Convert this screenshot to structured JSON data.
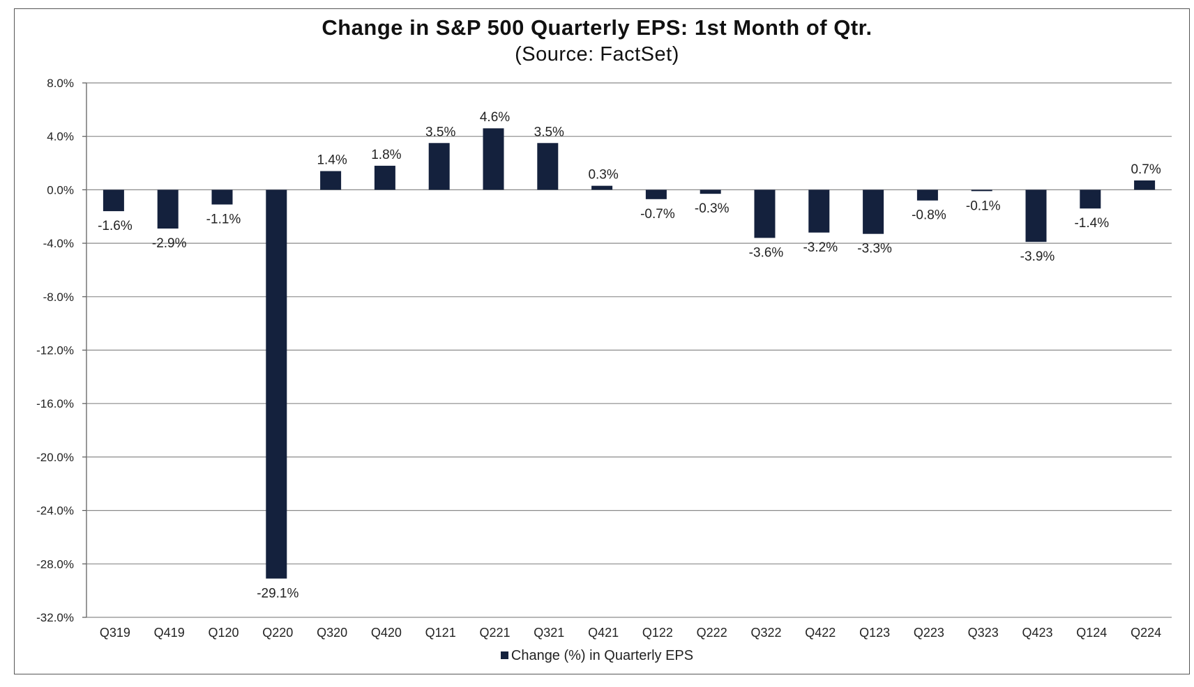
{
  "chart_data": {
    "type": "bar",
    "title": "Change in S&P 500 Quarterly EPS: 1st Month of Qtr.",
    "subtitle": "(Source: FactSet)",
    "categories": [
      "Q319",
      "Q419",
      "Q120",
      "Q220",
      "Q320",
      "Q420",
      "Q121",
      "Q221",
      "Q321",
      "Q421",
      "Q122",
      "Q222",
      "Q322",
      "Q422",
      "Q123",
      "Q223",
      "Q323",
      "Q423",
      "Q124",
      "Q224"
    ],
    "series": [
      {
        "name": "Change (%) in Quarterly EPS",
        "color": "#14213d",
        "values": [
          -1.6,
          -2.9,
          -1.1,
          -29.1,
          1.4,
          1.8,
          3.5,
          4.6,
          3.5,
          0.3,
          -0.7,
          -0.3,
          -3.6,
          -3.2,
          -3.3,
          -0.8,
          -0.1,
          -3.9,
          -1.4,
          0.7
        ],
        "data_labels": [
          "-1.6%",
          "-2.9%",
          "-1.1%",
          "-29.1%",
          "1.4%",
          "1.8%",
          "3.5%",
          "4.6%",
          "3.5%",
          "0.3%",
          "-0.7%",
          "-0.3%",
          "-3.6%",
          "-3.2%",
          "-3.3%",
          "-0.8%",
          "-0.1%",
          "-3.9%",
          "-1.4%",
          "0.7%"
        ]
      }
    ],
    "ylim": [
      -32,
      8
    ],
    "yticks": [
      8,
      4,
      0,
      -4,
      -8,
      -12,
      -16,
      -20,
      -24,
      -28,
      -32
    ],
    "ytick_labels": [
      "8.0%",
      "4.0%",
      "0.0%",
      "-4.0%",
      "-8.0%",
      "-12.0%",
      "-16.0%",
      "-20.0%",
      "-24.0%",
      "-28.0%",
      "-32.0%"
    ],
    "xlabel": "",
    "ylabel": "",
    "grid": true,
    "legend_position": "bottom-center",
    "colors": {
      "bar": "#14213d",
      "grid": "#8a8a8a",
      "axis": "#555555"
    }
  }
}
